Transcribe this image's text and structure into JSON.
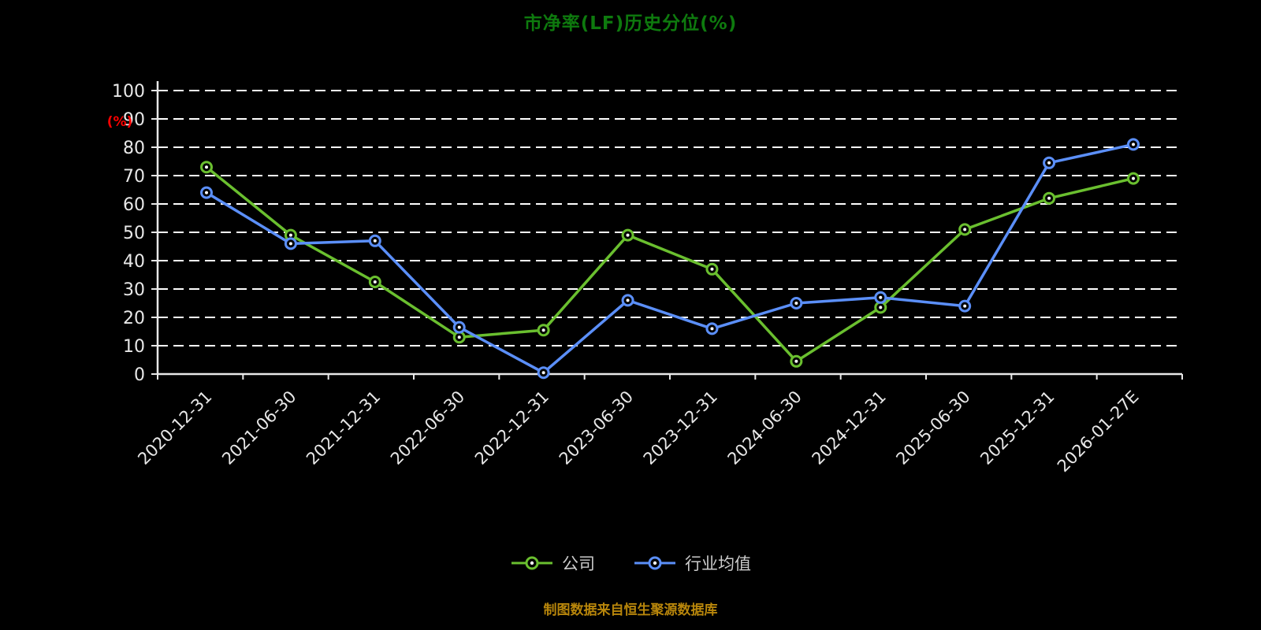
{
  "colors": {
    "background": "#000000",
    "title": "#0e7a0e",
    "axis": "#e8e8e8",
    "grid": "#ffffff",
    "tick_label": "#e8e8e8",
    "ylabel": "#ff0000",
    "legend_text": "#cccccc",
    "caption": "#b8860b",
    "marker_fill": "#000000",
    "marker_core": "#ffffff"
  },
  "chart_data": {
    "type": "line",
    "title": "市净率(LF)历史分位(%)",
    "ylabel": "(%)",
    "xlabel": "",
    "ylim": [
      0,
      100
    ],
    "yticks": [
      0,
      10,
      20,
      30,
      40,
      50,
      60,
      70,
      80,
      90,
      100
    ],
    "grid": true,
    "legend_position": "bottom",
    "caption": "制图数据来自恒生聚源数据库",
    "categories": [
      "2020-12-31",
      "2021-06-30",
      "2021-12-31",
      "2022-06-30",
      "2022-12-31",
      "2023-06-30",
      "2023-12-31",
      "2024-06-30",
      "2024-12-31",
      "2025-06-30",
      "2025-12-31",
      "2026-01-27E"
    ],
    "series": [
      {
        "name": "公司",
        "color": "#6abf2f",
        "values": [
          73,
          49,
          32.5,
          13,
          15.5,
          49,
          37,
          4.5,
          23.5,
          51,
          62,
          69
        ]
      },
      {
        "name": "行业均值",
        "color": "#5b8ff9",
        "values": [
          64,
          46,
          47,
          16.5,
          0.5,
          26,
          16,
          25,
          27,
          24,
          74.5,
          81
        ]
      }
    ]
  }
}
